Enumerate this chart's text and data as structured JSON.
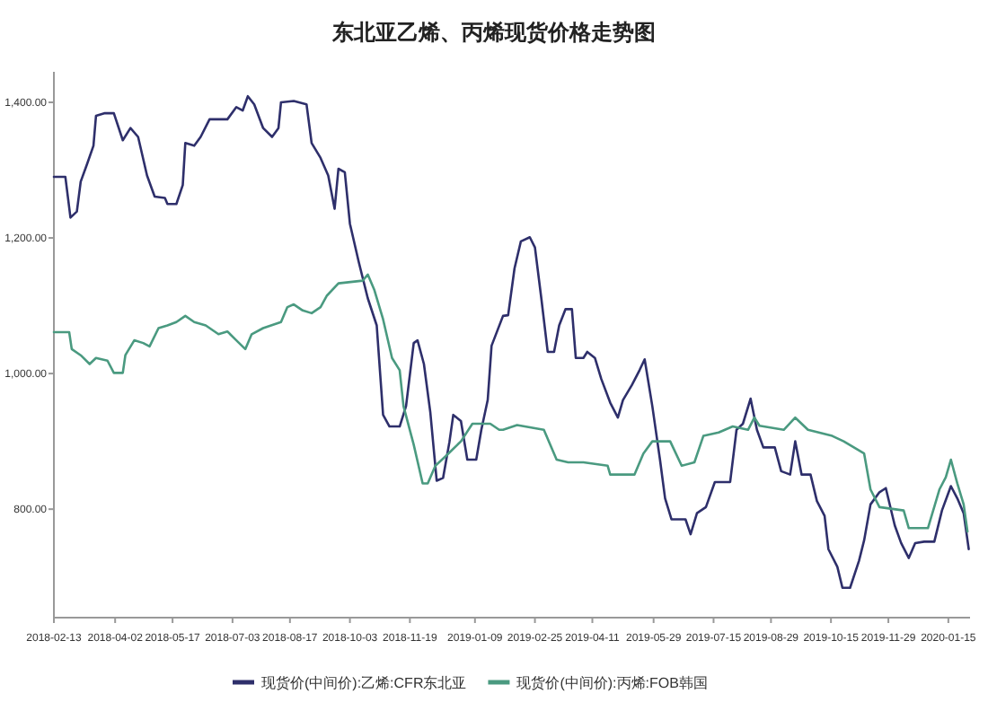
{
  "chart_data": {
    "type": "line",
    "title": "东北亚乙烯、丙烯现货价格走势图",
    "xlim": [
      "2018-02-13",
      "2020-02-01"
    ],
    "xticks": [
      "2018-02-13",
      "2018-04-02",
      "2018-05-17",
      "2018-07-03",
      "2018-08-17",
      "2018-10-03",
      "2018-11-19",
      "2019-01-09",
      "2019-02-25",
      "2019-04-11",
      "2019-05-29",
      "2019-07-15",
      "2019-08-29",
      "2019-10-15",
      "2019-11-29",
      "2020-01-15"
    ],
    "ylim": [
      640,
      1445
    ],
    "yticks": [
      {
        "value": 800,
        "label": "800.00"
      },
      {
        "value": 1000,
        "label": "1,000.00"
      },
      {
        "value": 1200,
        "label": "1,200.00"
      },
      {
        "value": 1400,
        "label": "1,400.00"
      }
    ],
    "legend": "bottom",
    "line_style": "solid",
    "series": [
      {
        "name": "现货价(中间价):乙烯:CFR东北亚",
        "color": "#2e2f6b",
        "x": [
          "2018-02-13",
          "2018-02-22",
          "2018-02-26",
          "2018-03-03",
          "2018-03-06",
          "2018-03-11",
          "2018-03-16",
          "2018-03-18",
          "2018-03-25",
          "2018-04-01",
          "2018-04-08",
          "2018-04-14",
          "2018-04-20",
          "2018-04-27",
          "2018-05-03",
          "2018-05-11",
          "2018-05-13",
          "2018-05-20",
          "2018-05-25",
          "2018-05-27",
          "2018-06-03",
          "2018-06-08",
          "2018-06-15",
          "2018-06-29",
          "2018-07-06",
          "2018-07-11",
          "2018-07-15",
          "2018-07-20",
          "2018-07-27",
          "2018-08-03",
          "2018-08-08",
          "2018-08-10",
          "2018-08-20",
          "2018-08-30",
          "2018-09-03",
          "2018-09-10",
          "2018-09-16",
          "2018-09-21",
          "2018-09-24",
          "2018-09-29",
          "2018-10-03",
          "2018-10-10",
          "2018-10-17",
          "2018-10-24",
          "2018-10-29",
          "2018-11-03",
          "2018-11-11",
          "2018-11-16",
          "2018-11-22",
          "2018-11-25",
          "2018-11-30",
          "2018-12-05",
          "2018-12-10",
          "2018-12-15",
          "2018-12-20",
          "2018-12-23",
          "2018-12-29",
          "2019-01-03",
          "2019-01-10",
          "2019-01-14",
          "2019-01-19",
          "2019-01-22",
          "2019-01-31",
          "2019-02-04",
          "2019-02-09",
          "2019-02-14",
          "2019-02-21",
          "2019-02-25",
          "2019-03-02",
          "2019-03-07",
          "2019-03-12",
          "2019-03-16",
          "2019-03-21",
          "2019-03-26",
          "2019-03-29",
          "2019-04-04",
          "2019-04-07",
          "2019-04-13",
          "2019-04-18",
          "2019-04-25",
          "2019-05-01",
          "2019-05-05",
          "2019-05-12",
          "2019-05-18",
          "2019-05-22",
          "2019-05-28",
          "2019-06-03",
          "2019-06-07",
          "2019-06-12",
          "2019-06-23",
          "2019-06-27",
          "2019-07-02",
          "2019-07-09",
          "2019-07-16",
          "2019-07-28",
          "2019-08-02",
          "2019-08-07",
          "2019-08-13",
          "2019-08-18",
          "2019-08-23",
          "2019-09-01",
          "2019-09-06",
          "2019-09-13",
          "2019-09-17",
          "2019-09-22",
          "2019-09-29",
          "2019-10-04",
          "2019-10-10",
          "2019-10-13",
          "2019-10-20",
          "2019-10-24",
          "2019-10-30",
          "2019-11-06",
          "2019-11-10",
          "2019-11-15",
          "2019-11-22",
          "2019-11-27",
          "2019-12-04",
          "2019-12-09",
          "2019-12-15",
          "2019-12-20",
          "2019-12-27",
          "2020-01-04",
          "2020-01-10",
          "2020-01-17",
          "2020-01-22",
          "2020-01-27",
          "2020-01-31"
        ],
        "values": [
          1290,
          1290,
          1230,
          1239,
          1283,
          1309,
          1336,
          1380,
          1384,
          1384,
          1344,
          1362,
          1349,
          1292,
          1261,
          1259,
          1250,
          1250,
          1278,
          1340,
          1336,
          1349,
          1375,
          1375,
          1393,
          1388,
          1409,
          1397,
          1362,
          1349,
          1362,
          1400,
          1402,
          1397,
          1340,
          1318,
          1292,
          1243,
          1302,
          1297,
          1221,
          1164,
          1111,
          1071,
          939,
          922,
          922,
          952,
          1045,
          1049,
          1014,
          943,
          842,
          846,
          899,
          939,
          930,
          873,
          873,
          917,
          961,
          1041,
          1085,
          1086,
          1155,
          1195,
          1201,
          1186,
          1111,
          1032,
          1032,
          1071,
          1095,
          1095,
          1023,
          1023,
          1032,
          1023,
          992,
          957,
          935,
          961,
          983,
          1005,
          1021,
          952,
          873,
          816,
          785,
          785,
          763,
          794,
          803,
          840,
          840,
          917,
          926,
          963,
          917,
          891,
          891,
          856,
          851,
          900,
          851,
          851,
          812,
          790,
          741,
          715,
          684,
          684,
          724,
          754,
          807,
          825,
          831,
          776,
          750,
          728,
          750,
          752,
          752,
          798,
          834,
          816,
          794,
          741
        ]
      },
      {
        "name": "现货价(中间价):丙烯:FOB韩国",
        "color": "#4a9a80",
        "x": [
          "2018-02-13",
          "2018-02-25",
          "2018-02-27",
          "2018-03-06",
          "2018-03-13",
          "2018-03-18",
          "2018-03-27",
          "2018-04-01",
          "2018-04-08",
          "2018-04-10",
          "2018-04-17",
          "2018-04-24",
          "2018-04-29",
          "2018-05-06",
          "2018-05-13",
          "2018-05-20",
          "2018-05-27",
          "2018-06-03",
          "2018-06-12",
          "2018-06-22",
          "2018-06-29",
          "2018-07-06",
          "2018-07-13",
          "2018-07-18",
          "2018-07-27",
          "2018-08-10",
          "2018-08-15",
          "2018-08-20",
          "2018-08-27",
          "2018-09-03",
          "2018-09-10",
          "2018-09-15",
          "2018-09-24",
          "2018-10-13",
          "2018-10-17",
          "2018-10-22",
          "2018-10-29",
          "2018-11-05",
          "2018-11-11",
          "2018-11-14",
          "2018-11-22",
          "2018-11-29",
          "2018-12-03",
          "2018-12-09",
          "2018-12-17",
          "2018-12-29",
          "2019-01-07",
          "2019-01-21",
          "2019-01-28",
          "2019-01-31",
          "2019-02-11",
          "2019-03-04",
          "2019-03-14",
          "2019-03-23",
          "2019-04-04",
          "2019-04-23",
          "2019-04-25",
          "2019-05-14",
          "2019-05-21",
          "2019-05-28",
          "2019-06-11",
          "2019-06-20",
          "2019-06-30",
          "2019-07-07",
          "2019-07-19",
          "2019-07-30",
          "2019-08-11",
          "2019-08-16",
          "2019-08-20",
          "2019-09-08",
          "2019-09-17",
          "2019-09-27",
          "2019-10-16",
          "2019-10-25",
          "2019-11-10",
          "2019-11-15",
          "2019-11-22",
          "2019-12-11",
          "2019-12-15",
          "2019-12-30",
          "2020-01-08",
          "2020-01-13",
          "2020-01-17",
          "2020-01-22",
          "2020-01-27",
          "2020-01-30"
        ],
        "values": [
          1061,
          1061,
          1036,
          1027,
          1014,
          1023,
          1019,
          1001,
          1001,
          1027,
          1049,
          1045,
          1040,
          1067,
          1071,
          1076,
          1085,
          1076,
          1071,
          1058,
          1062,
          1049,
          1036,
          1058,
          1067,
          1076,
          1098,
          1102,
          1093,
          1089,
          1098,
          1115,
          1133,
          1137,
          1146,
          1124,
          1080,
          1023,
          1005,
          952,
          895,
          838,
          838,
          864,
          878,
          900,
          926,
          926,
          917,
          917,
          924,
          917,
          873,
          869,
          869,
          864,
          851,
          851,
          882,
          900,
          900,
          864,
          869,
          908,
          913,
          922,
          917,
          935,
          923,
          917,
          935,
          917,
          908,
          900,
          882,
          829,
          803,
          798,
          772,
          772,
          829,
          847,
          873,
          838,
          807,
          767
        ]
      }
    ]
  }
}
